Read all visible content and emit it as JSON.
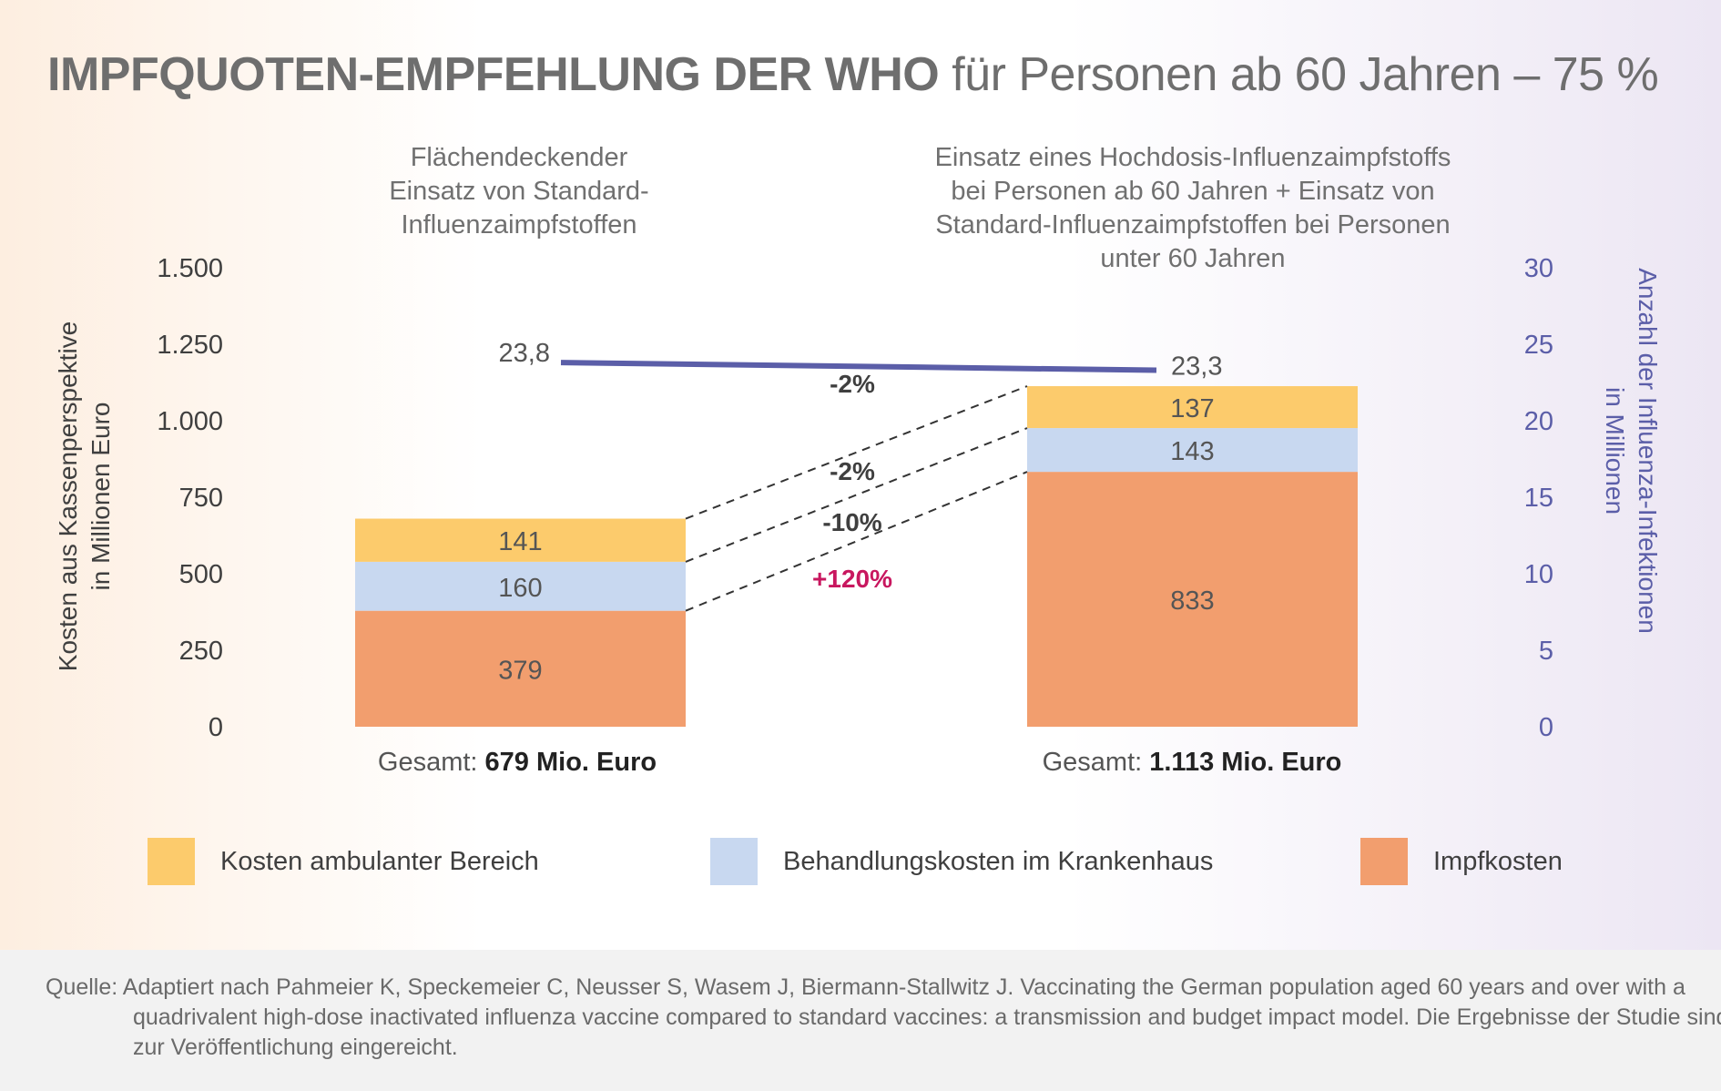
{
  "title": {
    "bold": "IMPFQUOTEN-EMPFEHLUNG DER WHO",
    "normal": "für Personen ab 60 Jahren – 75 %"
  },
  "chart_data": {
    "type": "bar",
    "stacked": true,
    "categories": [
      "Flächendeckender Einsatz von Standard-Influenzaimpfstoffen",
      "Einsatz eines Hochdosis-Influenzaimpfstoffs bei Personen ab 60 Jahren + Einsatz von Standard-Influenzaimpfstoffen bei Personen unter 60 Jahren"
    ],
    "category_title_lines": [
      [
        "Flächendeckender",
        "Einsatz von Standard-",
        "Influenzaimpfstoffen"
      ],
      [
        "Einsatz eines Hochdosis-Influenzaimpfstoffs",
        "bei Personen ab 60 Jahren + Einsatz von",
        "Standard-Influenzaimpfstoffen bei Personen",
        "unter 60 Jahren"
      ]
    ],
    "series": [
      {
        "name": "Impfkosten",
        "values": [
          379,
          833
        ],
        "labels": [
          "379",
          "833"
        ],
        "color": "#f29e6e"
      },
      {
        "name": "Behandlungskosten im Krankenhaus",
        "values": [
          160,
          143
        ],
        "labels": [
          "160",
          "143"
        ],
        "color": "#c8d8f0"
      },
      {
        "name": "Kosten ambulanter Bereich",
        "values": [
          141,
          137
        ],
        "labels": [
          "141",
          "137"
        ],
        "color": "#fccb6c"
      }
    ],
    "line_series": {
      "name": "Anzahl der Influenza-Infektionen in Millionen",
      "values": [
        23.8,
        23.3
      ],
      "labels": [
        "23,8",
        "23,3"
      ],
      "color": "#5b5ea8"
    },
    "ylabel": [
      "Kosten aus Kassenperspektive",
      "in Millionen Euro"
    ],
    "y2label": [
      "Anzahl der Influenza-Infektionen",
      "in Millionen"
    ],
    "ylim": [
      0,
      1500
    ],
    "y2lim": [
      0,
      30
    ],
    "y_ticks": [
      0,
      250,
      500,
      750,
      1000,
      1250,
      1500
    ],
    "y_tick_labels": [
      "0",
      "250",
      "500",
      "750",
      "1.000",
      "1.250",
      "1.500"
    ],
    "y2_ticks": [
      0,
      5,
      10,
      15,
      20,
      25,
      30
    ],
    "y2_tick_labels": [
      "0",
      "5",
      "10",
      "15",
      "20",
      "25",
      "30"
    ],
    "change_labels": [
      {
        "label": "-2%",
        "refers_to": "Anzahl der Influenza-Infektionen",
        "color": "#3f3f3f"
      },
      {
        "label": "-2%",
        "refers_to": "Kosten ambulanter Bereich",
        "color": "#3f3f3f"
      },
      {
        "label": "-10%",
        "refers_to": "Behandlungskosten im Krankenhaus",
        "color": "#3f3f3f"
      },
      {
        "label": "+120%",
        "refers_to": "Impfkosten",
        "color": "#c8175f"
      }
    ],
    "totals": [
      {
        "prefix": "Gesamt:",
        "value": "679 Mio. Euro"
      },
      {
        "prefix": "Gesamt:",
        "value": "1.113 Mio. Euro"
      }
    ],
    "legend_position": "bottom"
  },
  "legend": [
    {
      "label": "Kosten ambulanter Bereich",
      "color": "#fccb6c"
    },
    {
      "label": "Behandlungskosten im Krankenhaus",
      "color": "#c8d8f0"
    },
    {
      "label": "Impfkosten",
      "color": "#f29e6e"
    }
  ],
  "source": "Quelle: Adaptiert nach Pahmeier K, Speckemeier C, Neusser S, Wasem J, Biermann-Stallwitz J. Vaccinating the German population aged 60 years and over with a quadrivalent high-dose inactivated influenza vaccine compared to standard vaccines: a transmission and budget impact model. Die Ergebnisse der Studie sind zur Veröffentlichung eingereicht."
}
